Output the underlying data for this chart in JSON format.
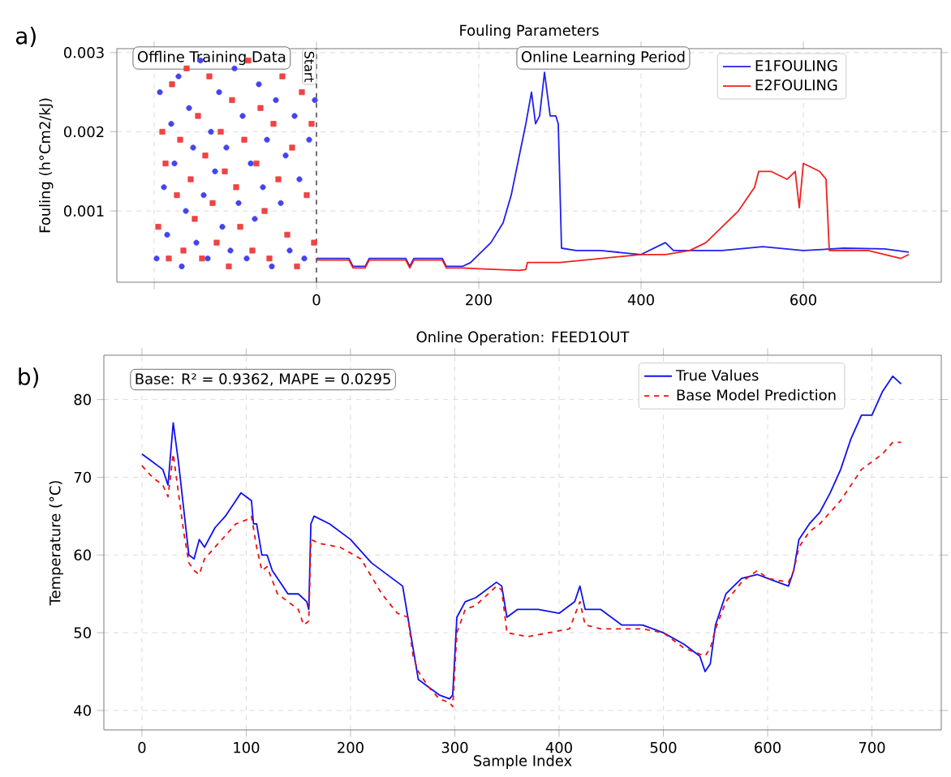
{
  "chart_data": [
    {
      "type": "line",
      "title": "Fouling Parameters",
      "ylabel": "Fouling (h°Cm2/kJ)",
      "xlim": [
        -246,
        770
      ],
      "ylim": [
        0.0001,
        0.00305
      ],
      "xticks": [
        {
          "value": -200,
          "label": null
        },
        0,
        200,
        400,
        600
      ],
      "yticks": [
        0.001,
        0.002,
        0.003
      ],
      "grid": true,
      "legend": "top right",
      "annotations": [
        "a)",
        "Offline Training Data",
        "Online Learning Period"
      ],
      "ref_lines": [
        {
          "axis": "x",
          "value": 0,
          "label": "Start",
          "color": "#555555",
          "line_style": "dashed"
        }
      ],
      "series": [
        {
          "type": "scatter",
          "marker": "square",
          "color": "#ee4444",
          "x": [
            -195,
            -190,
            -186,
            -182,
            -178,
            -172,
            -168,
            -164,
            -160,
            -155,
            -150,
            -146,
            -141,
            -137,
            -132,
            -128,
            -123,
            -118,
            -113,
            -108,
            -104,
            -99,
            -94,
            -89,
            -84,
            -79,
            -74,
            -69,
            -64,
            -58,
            -53,
            -47,
            -42,
            -36,
            -30,
            -24,
            -18,
            -12,
            -6,
            -3
          ],
          "values": [
            0.0008,
            0.002,
            0.0016,
            0.0004,
            0.0026,
            0.0012,
            0.0019,
            0.0005,
            0.0028,
            0.0014,
            0.0009,
            0.0022,
            0.0004,
            0.0017,
            0.0027,
            0.0011,
            0.0006,
            0.002,
            0.0015,
            0.0003,
            0.0024,
            0.0013,
            0.0008,
            0.0019,
            0.0029,
            0.0005,
            0.0016,
            0.0023,
            0.001,
            0.0004,
            0.0021,
            0.0014,
            0.0027,
            0.0007,
            0.0018,
            0.0003,
            0.0025,
            0.0012,
            0.0021,
            0.0006
          ]
        },
        {
          "type": "scatter",
          "marker": "circle",
          "color": "#4444ee",
          "x": [
            -197,
            -193,
            -188,
            -184,
            -179,
            -175,
            -170,
            -166,
            -161,
            -157,
            -152,
            -148,
            -143,
            -139,
            -134,
            -130,
            -125,
            -120,
            -116,
            -111,
            -106,
            -101,
            -96,
            -91,
            -86,
            -81,
            -76,
            -71,
            -66,
            -61,
            -55,
            -50,
            -44,
            -38,
            -33,
            -27,
            -21,
            -15,
            -9,
            -2
          ],
          "values": [
            0.0004,
            0.0025,
            0.0013,
            0.0007,
            0.0021,
            0.0016,
            0.0027,
            0.0003,
            0.001,
            0.0023,
            0.0018,
            0.0006,
            0.0029,
            0.0012,
            0.0004,
            0.002,
            0.0015,
            0.0025,
            0.0008,
            0.0018,
            0.0005,
            0.0028,
            0.0011,
            0.0022,
            0.0004,
            0.0016,
            0.0009,
            0.0026,
            0.0013,
            0.0019,
            0.0003,
            0.0024,
            0.0011,
            0.0017,
            0.0005,
            0.0022,
            0.0014,
            0.0004,
            0.0019,
            0.0024
          ]
        },
        {
          "name": "E1FOULING",
          "color": "#2020ee",
          "x": [
            0,
            40,
            45,
            60,
            65,
            110,
            115,
            120,
            155,
            160,
            180,
            190,
            200,
            215,
            230,
            240,
            250,
            258,
            265,
            270,
            275,
            281,
            288,
            295,
            298,
            302,
            320,
            350,
            400,
            430,
            440,
            500,
            550,
            600,
            650,
            700,
            730
          ],
          "values": [
            0.0004,
            0.0004,
            0.0003,
            0.0003,
            0.0004,
            0.0004,
            0.0003,
            0.0004,
            0.0004,
            0.0003,
            0.0003,
            0.00035,
            0.00045,
            0.0006,
            0.00085,
            0.0012,
            0.0017,
            0.0021,
            0.0025,
            0.0021,
            0.0022,
            0.00275,
            0.0022,
            0.0022,
            0.0021,
            0.00053,
            0.0005,
            0.0005,
            0.00045,
            0.0006,
            0.0005,
            0.0005,
            0.00055,
            0.0005,
            0.00053,
            0.00052,
            0.00048
          ]
        },
        {
          "name": "E2FOULING",
          "color": "#ee2020",
          "x": [
            0,
            40,
            45,
            60,
            65,
            110,
            115,
            120,
            155,
            160,
            180,
            200,
            250,
            258,
            260,
            300,
            350,
            400,
            430,
            460,
            480,
            500,
            520,
            540,
            545,
            560,
            580,
            590,
            595,
            600,
            620,
            628,
            632,
            680,
            700,
            720,
            730
          ],
          "values": [
            0.00038,
            0.00038,
            0.00028,
            0.00028,
            0.00038,
            0.00038,
            0.00028,
            0.00038,
            0.00038,
            0.00028,
            0.00028,
            0.00027,
            0.00025,
            0.00026,
            0.00035,
            0.00035,
            0.0004,
            0.00045,
            0.00045,
            0.0005,
            0.0006,
            0.0008,
            0.001,
            0.0013,
            0.0015,
            0.0015,
            0.0014,
            0.0015,
            0.00104,
            0.0016,
            0.0015,
            0.0014,
            0.0005,
            0.0005,
            0.00045,
            0.0004,
            0.00045
          ]
        }
      ]
    },
    {
      "type": "line",
      "title": "Online Operation: FEED1OUT",
      "xlabel": "Sample Index",
      "ylabel": "Temperature (°C)",
      "xlim": [
        -36.5,
        766.5
      ],
      "ylim": [
        37.5,
        85.7
      ],
      "xticks": [
        0,
        100,
        200,
        300,
        400,
        500,
        600,
        700
      ],
      "yticks": [
        40,
        50,
        60,
        70,
        80
      ],
      "grid": true,
      "legend": "top right",
      "annotations": [
        "b)",
        "Base: R² = 0.9362, MAPE = 0.0295"
      ],
      "series": [
        {
          "name": "True Values",
          "color": "#1010ee",
          "line_style": "solid",
          "x": [
            0,
            10,
            20,
            25,
            30,
            35,
            40,
            45,
            50,
            55,
            60,
            70,
            80,
            90,
            95,
            100,
            105,
            107,
            110,
            115,
            120,
            125,
            130,
            140,
            150,
            158,
            160,
            162,
            165,
            180,
            200,
            220,
            240,
            250,
            255,
            260,
            265,
            275,
            285,
            295,
            298,
            302,
            310,
            320,
            340,
            345,
            350,
            360,
            380,
            400,
            415,
            420,
            425,
            440,
            460,
            480,
            500,
            520,
            535,
            540,
            545,
            550,
            560,
            575,
            590,
            600,
            610,
            620,
            625,
            630,
            640,
            650,
            660,
            670,
            680,
            690,
            700,
            710,
            720,
            728
          ],
          "values": [
            73,
            72,
            71,
            69,
            77,
            72,
            66,
            60,
            59.5,
            62,
            61,
            63.5,
            65,
            67,
            68,
            67.5,
            67,
            64,
            64,
            60,
            60,
            58,
            57,
            55,
            55,
            54,
            53,
            64,
            65,
            64,
            62,
            59,
            57,
            56,
            52,
            48,
            44,
            43,
            42,
            41.5,
            42,
            52,
            54,
            54.5,
            56.5,
            56,
            52,
            53,
            53,
            52.5,
            54,
            56,
            53,
            53,
            51,
            51,
            50,
            48.5,
            47,
            45,
            46,
            51,
            55,
            57,
            57.5,
            57,
            56.5,
            56,
            58,
            62,
            64,
            65.5,
            68,
            71,
            75,
            78,
            78,
            81,
            83,
            82
          ]
        },
        {
          "name": "Base Model Prediction",
          "color": "#ee1010",
          "line_style": "dashed",
          "x": [
            0,
            10,
            20,
            25,
            30,
            35,
            40,
            45,
            50,
            55,
            60,
            70,
            80,
            90,
            100,
            105,
            110,
            115,
            120,
            130,
            140,
            150,
            155,
            160,
            162,
            170,
            190,
            210,
            230,
            245,
            255,
            260,
            265,
            275,
            285,
            295,
            298,
            302,
            310,
            320,
            340,
            345,
            350,
            370,
            390,
            410,
            420,
            425,
            440,
            460,
            480,
            500,
            520,
            540,
            545,
            550,
            560,
            575,
            590,
            600,
            620,
            625,
            630,
            640,
            650,
            660,
            670,
            680,
            690,
            700,
            710,
            720,
            728
          ],
          "values": [
            71.5,
            70,
            69,
            67.5,
            73,
            68,
            63,
            59,
            58,
            57.5,
            59.5,
            61,
            62.5,
            64,
            64.5,
            65,
            61,
            58,
            58.5,
            55,
            54,
            53,
            51,
            51.5,
            62,
            61.5,
            61,
            59.5,
            55,
            52.5,
            52,
            47,
            45,
            43,
            41.5,
            41,
            40.5,
            50,
            53,
            53.5,
            56,
            55.5,
            50,
            49.5,
            50,
            50.5,
            54,
            51,
            50.5,
            50.5,
            50.5,
            50,
            48,
            47,
            48,
            50.5,
            54,
            56.5,
            58,
            57,
            56.5,
            58,
            61,
            63,
            64,
            65.5,
            67,
            69,
            71,
            72,
            73,
            74.5,
            74.5
          ]
        }
      ]
    }
  ]
}
